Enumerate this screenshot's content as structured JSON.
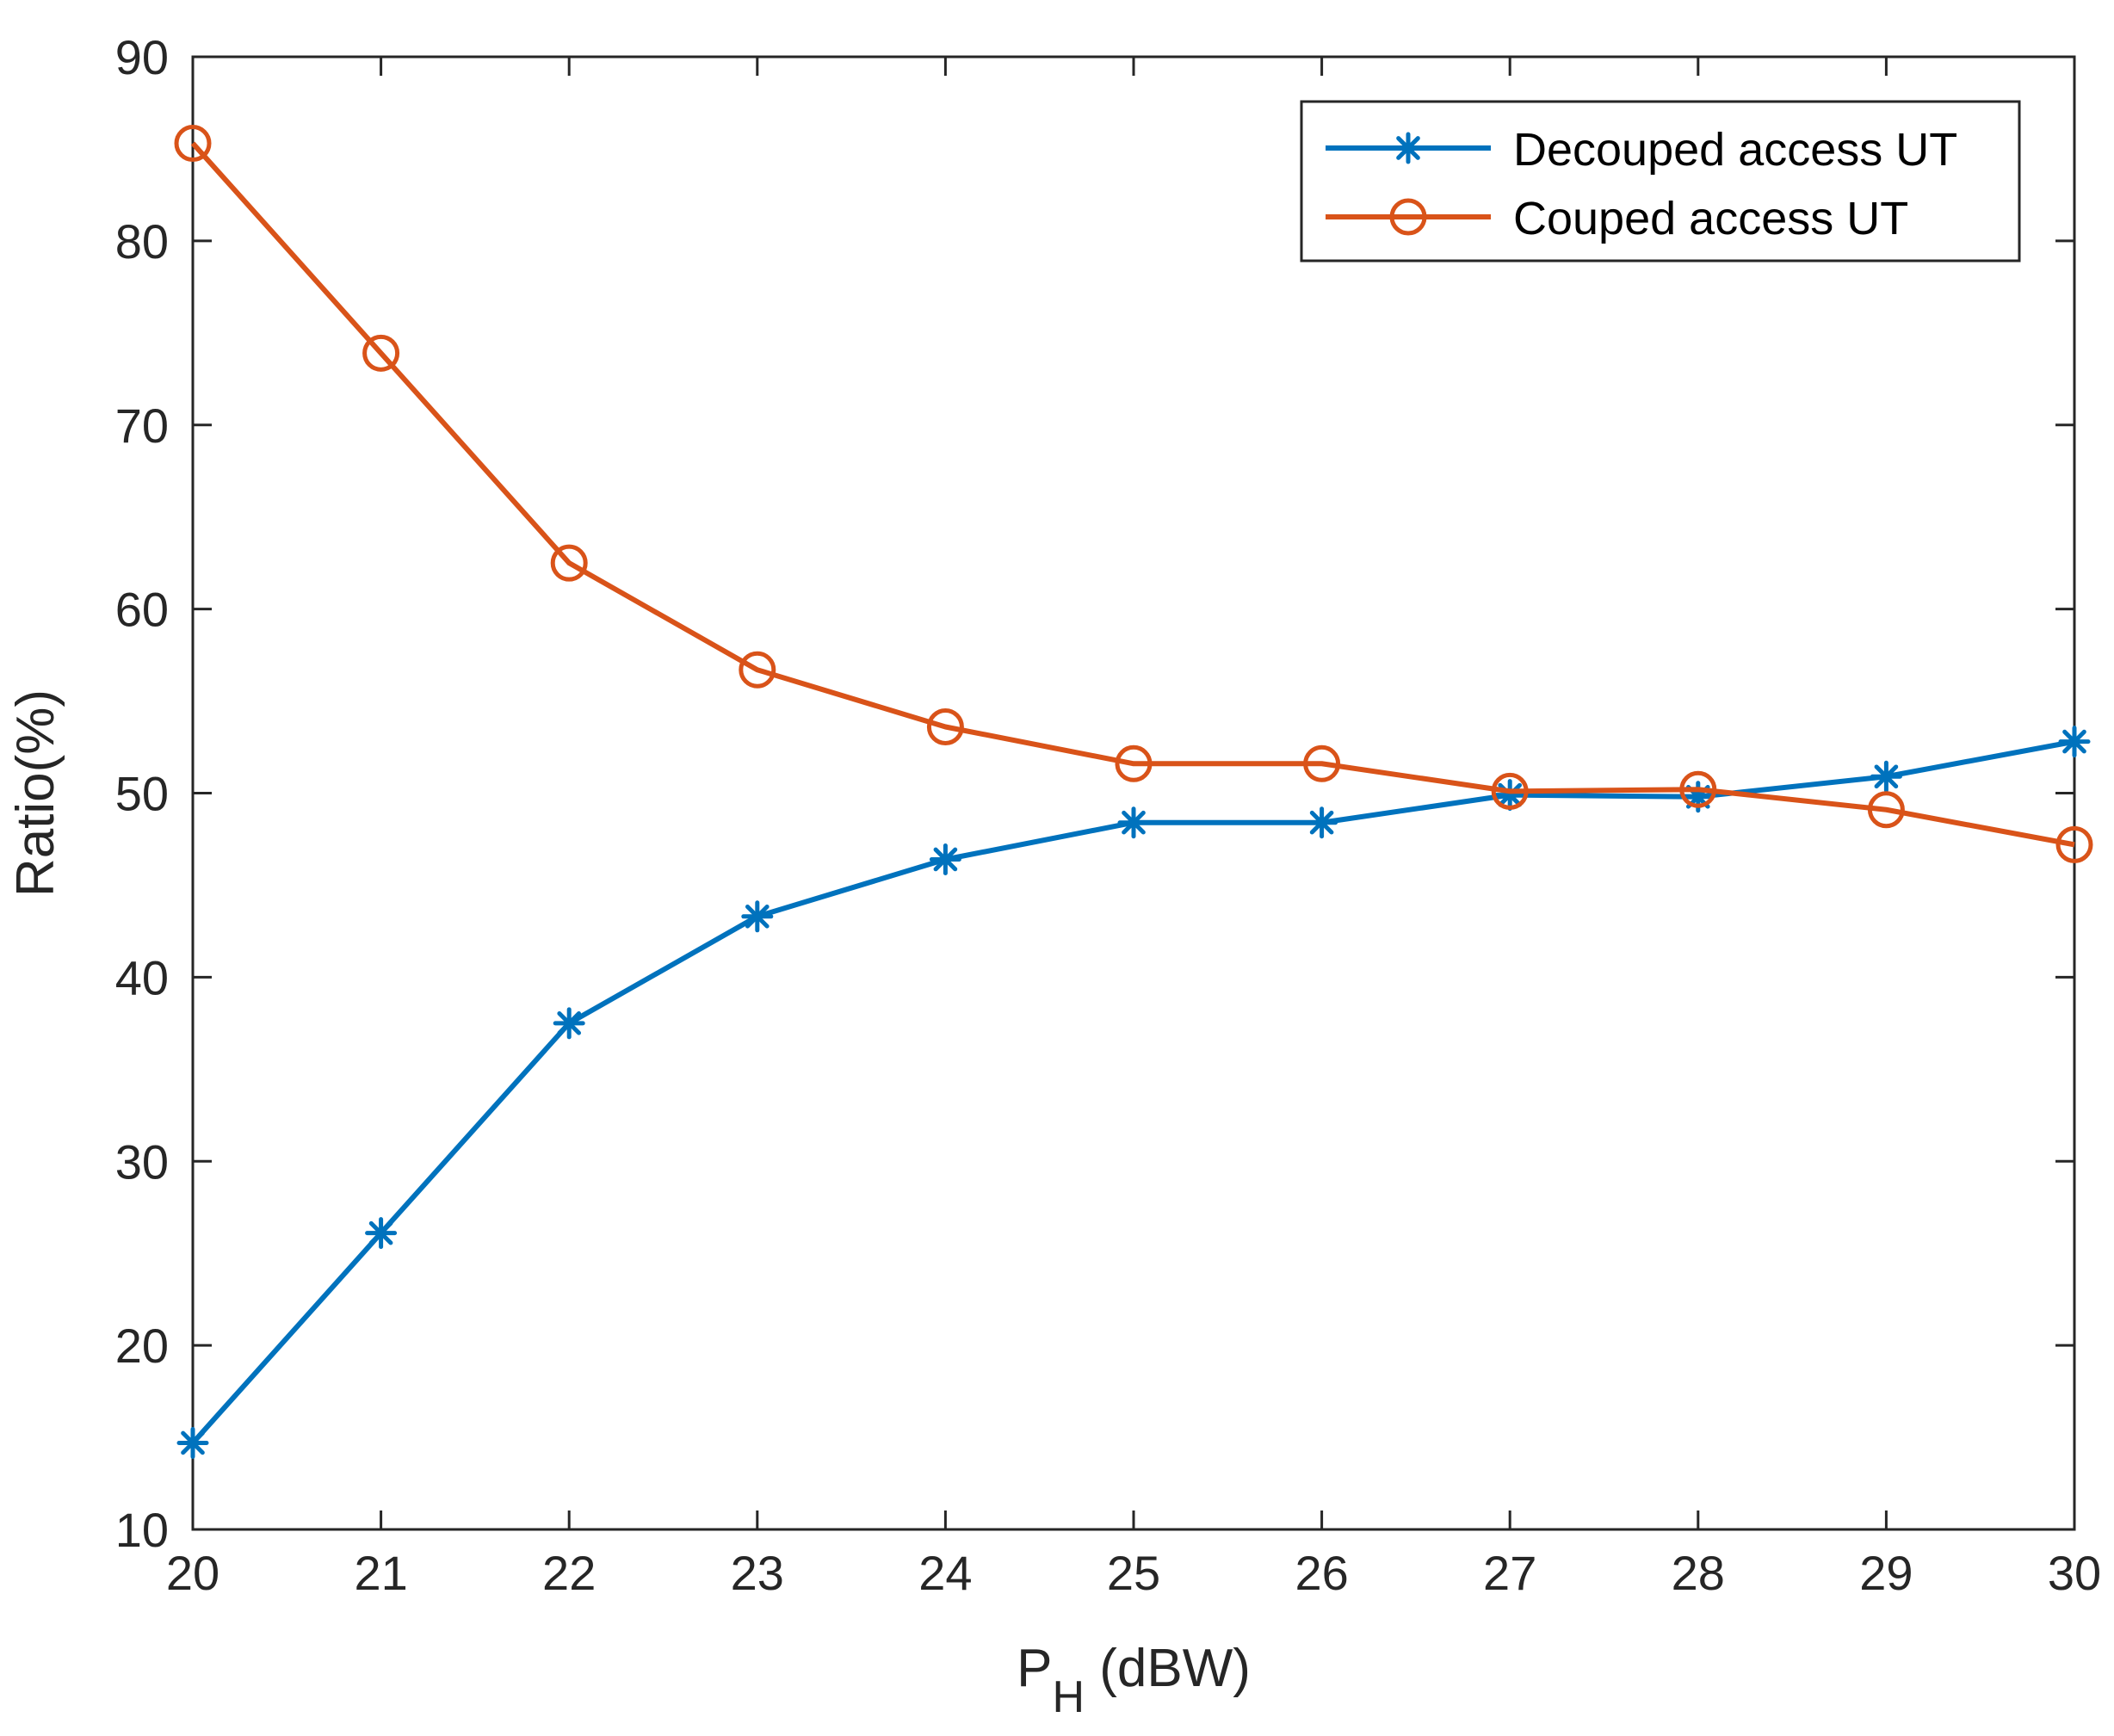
{
  "chart_data": {
    "type": "line",
    "title": "",
    "xlabel": {
      "main": "P",
      "subscript": "H",
      "suffix": " (dBW)"
    },
    "ylabel": "Ratio(%)",
    "xlim": [
      20,
      30
    ],
    "ylim": [
      10,
      90
    ],
    "x": [
      20,
      21,
      22,
      23,
      24,
      25,
      26,
      27,
      28,
      29,
      30
    ],
    "x_ticks": [
      20,
      21,
      22,
      23,
      24,
      25,
      26,
      27,
      28,
      29,
      30
    ],
    "y_ticks": [
      10,
      20,
      30,
      40,
      50,
      60,
      70,
      80,
      90
    ],
    "grid": false,
    "legend_position": "top-right",
    "series": [
      {
        "name": "Decouped access UT",
        "color": "#0072BD",
        "marker": "asterisk",
        "values": [
          14.7,
          26.1,
          37.5,
          43.3,
          46.4,
          48.4,
          48.4,
          49.9,
          49.8,
          50.9,
          52.8
        ]
      },
      {
        "name": "Couped access UT",
        "color": "#D95319",
        "marker": "circle",
        "values": [
          85.3,
          73.9,
          62.5,
          56.7,
          53.6,
          51.6,
          51.6,
          50.1,
          50.2,
          49.1,
          47.2
        ]
      }
    ]
  }
}
